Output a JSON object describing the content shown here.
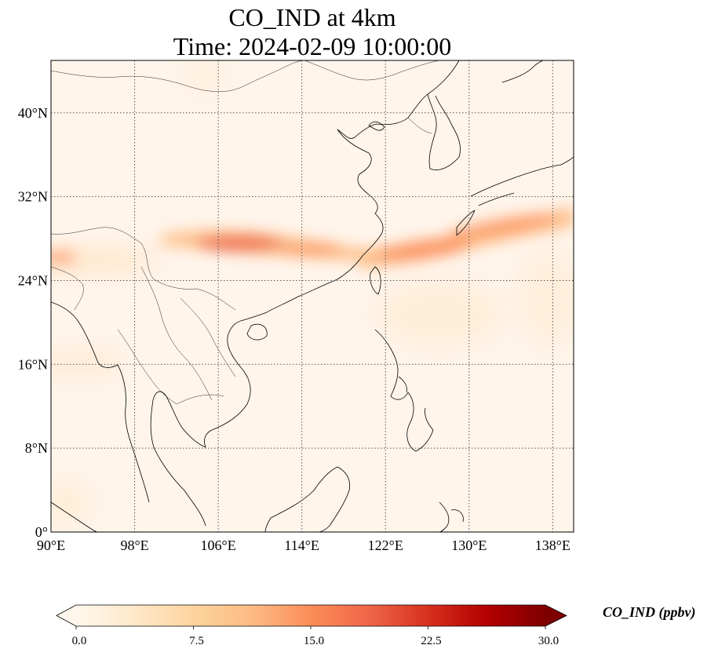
{
  "title": {
    "line1": "CO_IND at 4km",
    "line2": "Time: 2024-02-09 10:00:00"
  },
  "map": {
    "lon_range": [
      90,
      140
    ],
    "lat_range": [
      0,
      45
    ],
    "x_ticks": [
      {
        "value": 90,
        "label": "90°E"
      },
      {
        "value": 98,
        "label": "98°E"
      },
      {
        "value": 106,
        "label": "106°E"
      },
      {
        "value": 114,
        "label": "114°E"
      },
      {
        "value": 122,
        "label": "122°E"
      },
      {
        "value": 130,
        "label": "130°E"
      },
      {
        "value": 138,
        "label": "138°E"
      }
    ],
    "y_ticks": [
      {
        "value": 0,
        "label": "0°"
      },
      {
        "value": 8,
        "label": "8°N"
      },
      {
        "value": 16,
        "label": "16°N"
      },
      {
        "value": 24,
        "label": "24°N"
      },
      {
        "value": 32,
        "label": "32°N"
      },
      {
        "value": 40,
        "label": "40°N"
      }
    ],
    "grid": "dotted",
    "background_color": "#fff5eb",
    "coastline_color": "#000000"
  },
  "colorbar": {
    "label": "CO_IND (ppbv)",
    "colormap": "OrRd",
    "min": 0.0,
    "max": 30.0,
    "extend": "both",
    "ticks": [
      "0.0",
      "7.5",
      "15.0",
      "22.5",
      "30.0"
    ],
    "stops": [
      "#fff7ec",
      "#fee8c8",
      "#fdd49e",
      "#fdbb84",
      "#fc8d59",
      "#ef6548",
      "#d7301f",
      "#b30000",
      "#7f0000"
    ]
  },
  "chart_data": {
    "type": "heatmap",
    "variable": "CO_IND",
    "unit": "ppbv",
    "features": [
      {
        "lon": 108.5,
        "lat": 27.8,
        "value": 13
      },
      {
        "lon": 104,
        "lat": 28.2,
        "value": 9
      },
      {
        "lon": 114,
        "lat": 27,
        "value": 6
      },
      {
        "lon": 124,
        "lat": 26.8,
        "value": 10
      },
      {
        "lon": 129,
        "lat": 28,
        "value": 9
      },
      {
        "lon": 136,
        "lat": 29.5,
        "value": 7
      },
      {
        "lon": 91,
        "lat": 26.3,
        "value": 6
      },
      {
        "lon": 92,
        "lat": 16,
        "value": 3
      },
      {
        "lon": 90.5,
        "lat": 3,
        "value": 2
      },
      {
        "lon": 137,
        "lat": 22,
        "value": 2
      }
    ]
  }
}
